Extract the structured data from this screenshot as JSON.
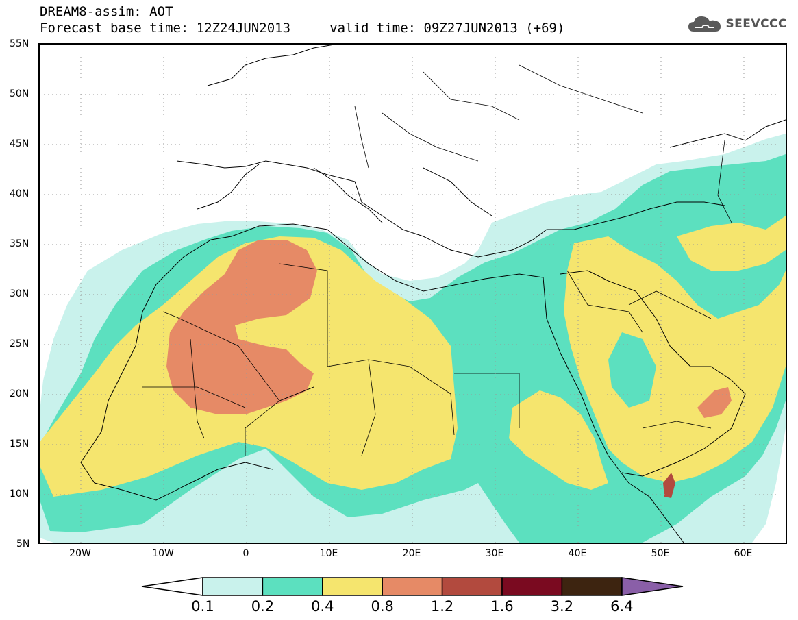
{
  "header": {
    "line1": "DREAM8-assim: AOT",
    "line2": "Forecast base time: 12Z24JUN2013     valid time: 09Z27JUN2013 (+69)"
  },
  "logo": {
    "text": "SEEVCCC",
    "icon": "cloud-icon"
  },
  "map": {
    "variable": "AOT",
    "lat_labels": [
      "55N",
      "50N",
      "45N",
      "40N",
      "35N",
      "30N",
      "25N",
      "20N",
      "15N",
      "10N",
      "5N"
    ],
    "lon_labels": [
      "20W",
      "10W",
      "0",
      "10E",
      "20E",
      "30E",
      "40E",
      "50E",
      "60E"
    ],
    "lat_range": [
      5,
      55
    ],
    "lon_range": [
      -25,
      65
    ],
    "grid": "dotted",
    "palette": {
      "c1": "#c9f2ec",
      "c2": "#5ce0bf",
      "c3": "#f5e56e",
      "c4": "#e68a66",
      "c5": "#b24a3e",
      "c6": "#7a0a20",
      "c7": "#3d2410",
      "c8": "#8a5fa8"
    }
  },
  "colorbar": {
    "labels": [
      "0.1",
      "0.2",
      "0.4",
      "0.8",
      "1.2",
      "1.6",
      "3.2",
      "6.4"
    ],
    "colors": [
      "#c9f2ec",
      "#5ce0bf",
      "#f5e56e",
      "#e68a66",
      "#b24a3e",
      "#7a0a20",
      "#3d2410"
    ],
    "under_color": "#ffffff",
    "over_color": "#8a5fa8"
  }
}
